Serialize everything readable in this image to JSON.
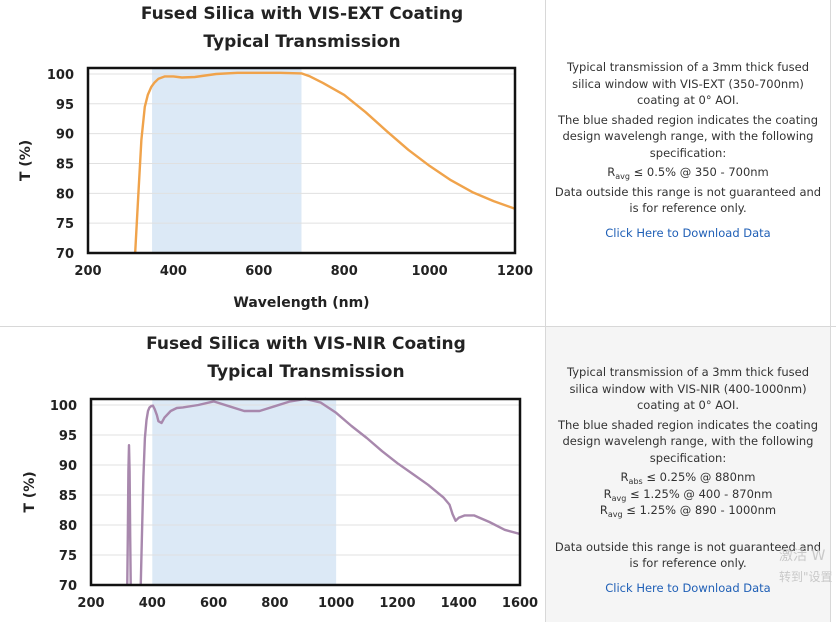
{
  "chart_data": [
    {
      "type": "line",
      "title_lines": [
        "Fused Silica with VIS-EXT Coating",
        "Typical Transmission"
      ],
      "xlabel": "Wavelength (nm)",
      "ylabel": "T (%)",
      "xlim": [
        200,
        1200
      ],
      "ylim": [
        70,
        101
      ],
      "xticks": [
        "200",
        "400",
        "600",
        "800",
        "1000",
        "1200"
      ],
      "yticks": [
        "70",
        "75",
        "80",
        "85",
        "90",
        "95",
        "100"
      ],
      "shaded_region": [
        350,
        700
      ],
      "shade_color": "#dce9f6",
      "line_color": "#f0a34b",
      "grid": true,
      "series": [
        {
          "x": [
            310,
            318,
            325,
            333,
            340,
            348,
            355,
            365,
            380,
            400,
            420,
            450,
            500,
            550,
            600,
            650,
            700,
            720,
            750,
            800,
            850,
            900,
            950,
            1000,
            1050,
            1100,
            1150,
            1200
          ],
          "y": [
            69.5,
            80,
            89,
            94.5,
            96.5,
            97.8,
            98.5,
            99.2,
            99.6,
            99.6,
            99.4,
            99.5,
            100.0,
            100.2,
            100.2,
            100.2,
            100.1,
            99.6,
            98.5,
            96.5,
            93.6,
            90.4,
            87.3,
            84.6,
            82.2,
            80.2,
            78.7,
            77.4
          ]
        }
      ]
    },
    {
      "type": "line",
      "title_lines": [
        "Fused Silica with VIS-NIR Coating",
        "Typical Transmission"
      ],
      "xlabel": "",
      "ylabel": "T (%)",
      "xlim": [
        200,
        1600
      ],
      "ylim": [
        70,
        101
      ],
      "xticks": [
        "200",
        "400",
        "600",
        "800",
        "1000",
        "1200",
        "1400",
        "1600"
      ],
      "yticks": [
        "70",
        "75",
        "80",
        "85",
        "90",
        "95",
        "100"
      ],
      "shaded_region": [
        400,
        1000
      ],
      "shade_color": "#dce9f6",
      "line_color": "#a888ad",
      "grid": true,
      "series": [
        {
          "x": [
            318,
            320,
            322,
            324,
            326,
            328,
            330,
            362,
            366,
            371,
            376,
            381,
            386,
            391,
            396,
            402,
            408,
            415,
            420,
            430,
            440,
            460,
            480,
            500,
            550,
            600,
            650,
            700,
            750,
            800,
            850,
            900,
            950,
            1000,
            1050,
            1100,
            1150,
            1200,
            1250,
            1300,
            1350,
            1370,
            1380,
            1390,
            1400,
            1420,
            1450,
            1500,
            1550,
            1600
          ],
          "y": [
            69,
            78,
            89,
            93.3,
            89,
            78,
            69,
            69,
            78,
            88,
            94.5,
            97.5,
            99.0,
            99.6,
            99.8,
            99.9,
            99.3,
            98.3,
            97.3,
            97.0,
            97.9,
            99.0,
            99.5,
            99.6,
            100.0,
            100.6,
            99.8,
            99.0,
            99.0,
            99.8,
            100.6,
            101.0,
            100.4,
            98.7,
            96.5,
            94.5,
            92.3,
            90.3,
            88.5,
            86.7,
            84.6,
            83.4,
            81.8,
            80.7,
            81.2,
            81.6,
            81.6,
            80.5,
            79.2,
            78.5
          ]
        }
      ]
    }
  ],
  "descriptions": [
    {
      "p1": "Typical transmission of a 3mm thick fused silica window with VIS-EXT (350-700nm) coating at 0° AOI.",
      "p2": "The blue shaded region indicates the coating design wavelengh range, with the following specification:",
      "specs": [
        {
          "sym": "R",
          "sub": "avg",
          "text": "≤ 0.5% @ 350 - 700nm"
        }
      ],
      "p3": "Data outside this range is not guaranteed and is for reference only.",
      "link": "Click Here to Download Data"
    },
    {
      "p1": "Typical transmission of a 3mm thick fused silica window with VIS-NIR (400-1000nm) coating at 0° AOI.",
      "p2": "The blue shaded region indicates the coating design wavelengh range, with the following specification:",
      "specs": [
        {
          "sym": "R",
          "sub": "abs",
          "text": "≤ 0.25% @ 880nm"
        },
        {
          "sym": "R",
          "sub": "avg",
          "text": "≤ 1.25% @ 400 - 870nm"
        },
        {
          "sym": "R",
          "sub": "avg",
          "text": "≤ 1.25% @ 890 - 1000nm"
        }
      ],
      "p3": "Data outside this range is not guaranteed and is for reference only.",
      "link": "Click Here to Download Data"
    }
  ],
  "watermark": {
    "line1": "激活 W",
    "line2": "转到\"设置"
  }
}
